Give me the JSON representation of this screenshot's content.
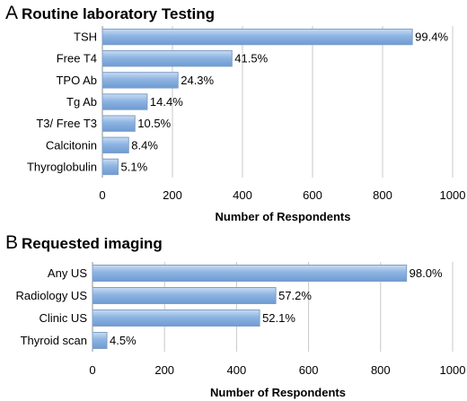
{
  "chart_data": [
    {
      "type": "bar",
      "orientation": "horizontal",
      "panel": "A",
      "title": "Routine laboratory Testing",
      "categories": [
        "TSH",
        "Free T4",
        "TPO Ab",
        "Tg Ab",
        "T3/ Free T3",
        "Calcitonin",
        "Thyroglobulin"
      ],
      "values": [
        885,
        370,
        216,
        128,
        93,
        75,
        45
      ],
      "data_labels": [
        "99.4%",
        "41.5%",
        "24.3%",
        "14.4%",
        "10.5%",
        "8.4%",
        "5.1%"
      ],
      "xlabel": "Number of Respondents",
      "ylabel": "",
      "xlim": [
        0,
        1000
      ],
      "xticks": [
        "0",
        "200",
        "400",
        "600",
        "800",
        "1000"
      ],
      "grid": true,
      "bar_color": "#8db4e2"
    },
    {
      "type": "bar",
      "orientation": "horizontal",
      "panel": "B",
      "title": "Requested imaging",
      "categories": [
        "Any US",
        "Radiology US",
        "Clinic US",
        "Thyroid scan"
      ],
      "values": [
        872,
        509,
        464,
        40
      ],
      "data_labels": [
        "98.0%",
        "57.2%",
        "52.1%",
        "4.5%"
      ],
      "xlabel": "Number of Respondents",
      "ylabel": "",
      "xlim": [
        0,
        1000
      ],
      "xticks": [
        "0",
        "200",
        "400",
        "600",
        "800",
        "1000"
      ],
      "grid": true,
      "bar_color": "#8db4e2"
    }
  ]
}
